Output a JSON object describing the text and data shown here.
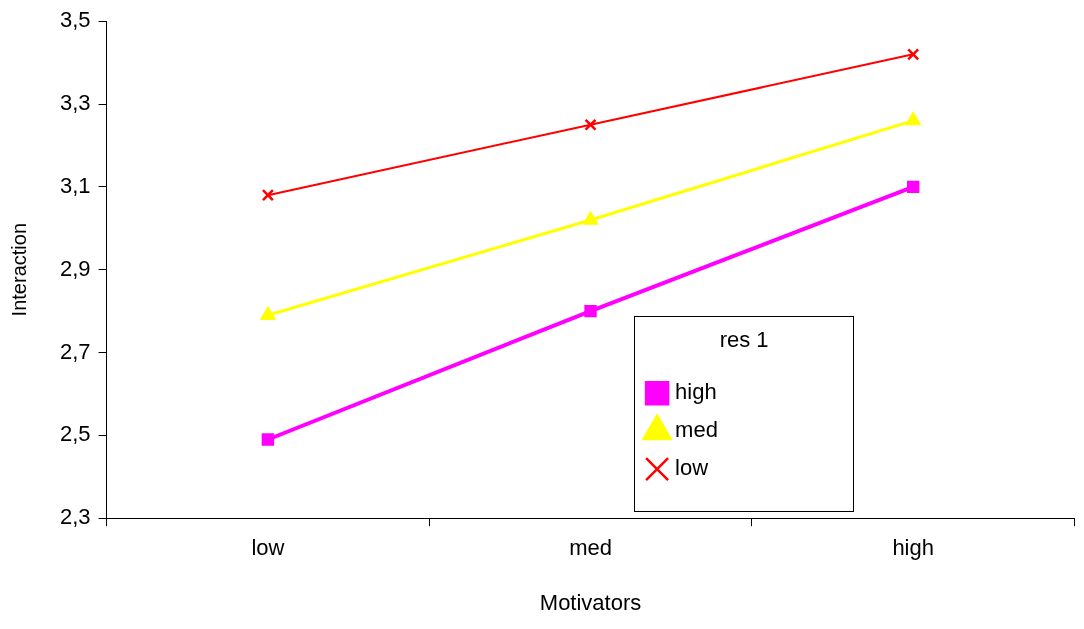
{
  "chart_data": {
    "type": "line",
    "xlabel": "Motivators",
    "ylabel": "Interaction",
    "legend_title": "res 1",
    "legend": "bottom right",
    "grid": false,
    "categories": [
      "low",
      "med",
      "high"
    ],
    "ylim": [
      2.3,
      3.5
    ],
    "yticks": [
      {
        "value": 2.3,
        "label": "2,3"
      },
      {
        "value": 2.5,
        "label": "2,5"
      },
      {
        "value": 2.7,
        "label": "2,7"
      },
      {
        "value": 2.9,
        "label": "2,9"
      },
      {
        "value": 3.1,
        "label": "3,1"
      },
      {
        "value": 3.3,
        "label": "3,3"
      },
      {
        "value": 3.5,
        "label": "3,5"
      }
    ],
    "series": [
      {
        "name": "high",
        "color": "#ff00ff",
        "marker": "square",
        "values": [
          2.49,
          2.8,
          3.1
        ]
      },
      {
        "name": "med",
        "color": "#ffff00",
        "marker": "triangle",
        "values": [
          2.79,
          3.02,
          3.26
        ]
      },
      {
        "name": "low",
        "color": "#ff0000",
        "marker": "cross",
        "values": [
          3.08,
          3.25,
          3.42
        ]
      }
    ]
  }
}
